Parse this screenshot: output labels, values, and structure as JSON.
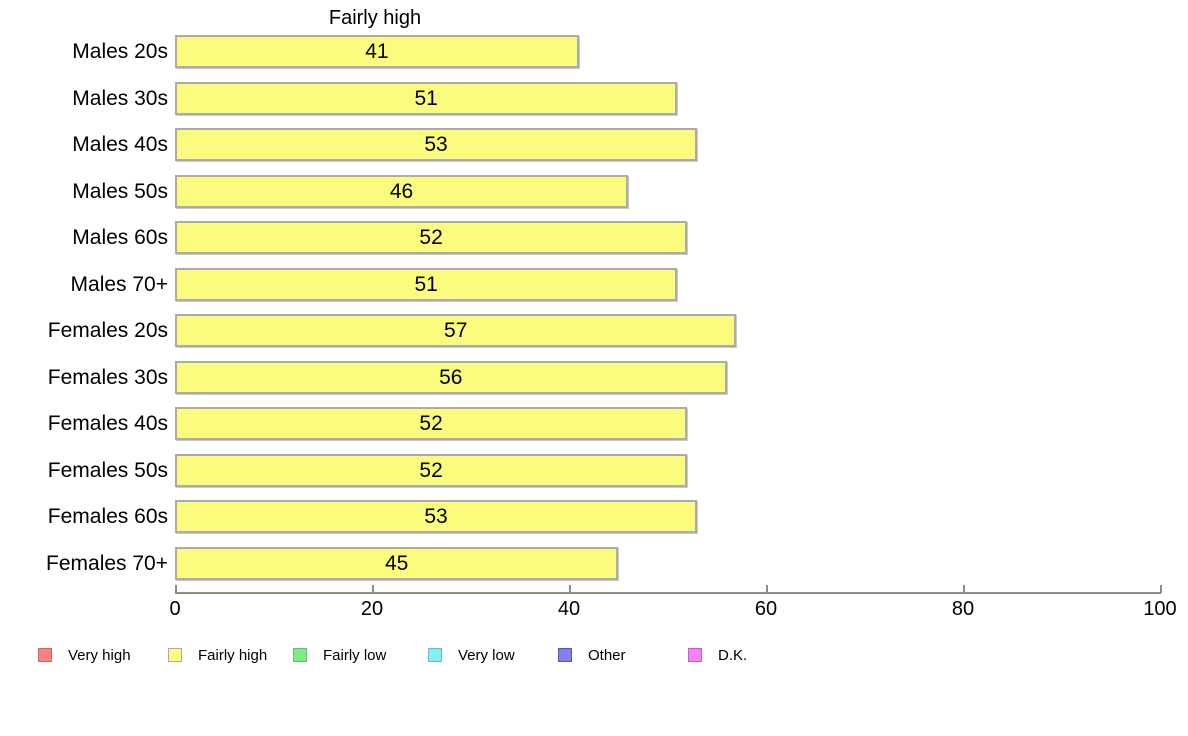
{
  "chart_data": {
    "type": "bar",
    "orientation": "horizontal",
    "title": "Fairly high",
    "categories": [
      "Males 20s",
      "Males 30s",
      "Males 40s",
      "Males 50s",
      "Males 60s",
      "Males 70+",
      "Females 20s",
      "Females 30s",
      "Females 40s",
      "Females 50s",
      "Females 60s",
      "Females 70+"
    ],
    "values": [
      41,
      51,
      53,
      46,
      52,
      51,
      57,
      56,
      52,
      52,
      53,
      45
    ],
    "xlim": [
      0,
      100
    ],
    "x_ticks": [
      0,
      20,
      40,
      60,
      80,
      100
    ],
    "grid": "off",
    "bar_color": "#FBFB7D",
    "bar_border_color": "#ABABAB",
    "legend_position": "bottom",
    "legend": [
      {
        "label": "Very high",
        "color": "#F8827E",
        "border": "#C86A6A"
      },
      {
        "label": "Fairly high",
        "color": "#FBFB7D",
        "border": "#ABABAB"
      },
      {
        "label": "Fairly low",
        "color": "#7DEE85",
        "border": "#76B478"
      },
      {
        "label": "Very low",
        "color": "#7DF2F2",
        "border": "#88AFAF"
      },
      {
        "label": "Other",
        "color": "#8080EE",
        "border": "#5555C0"
      },
      {
        "label": "D.K.",
        "color": "#F583F5",
        "border": "#C05FC0"
      }
    ]
  }
}
